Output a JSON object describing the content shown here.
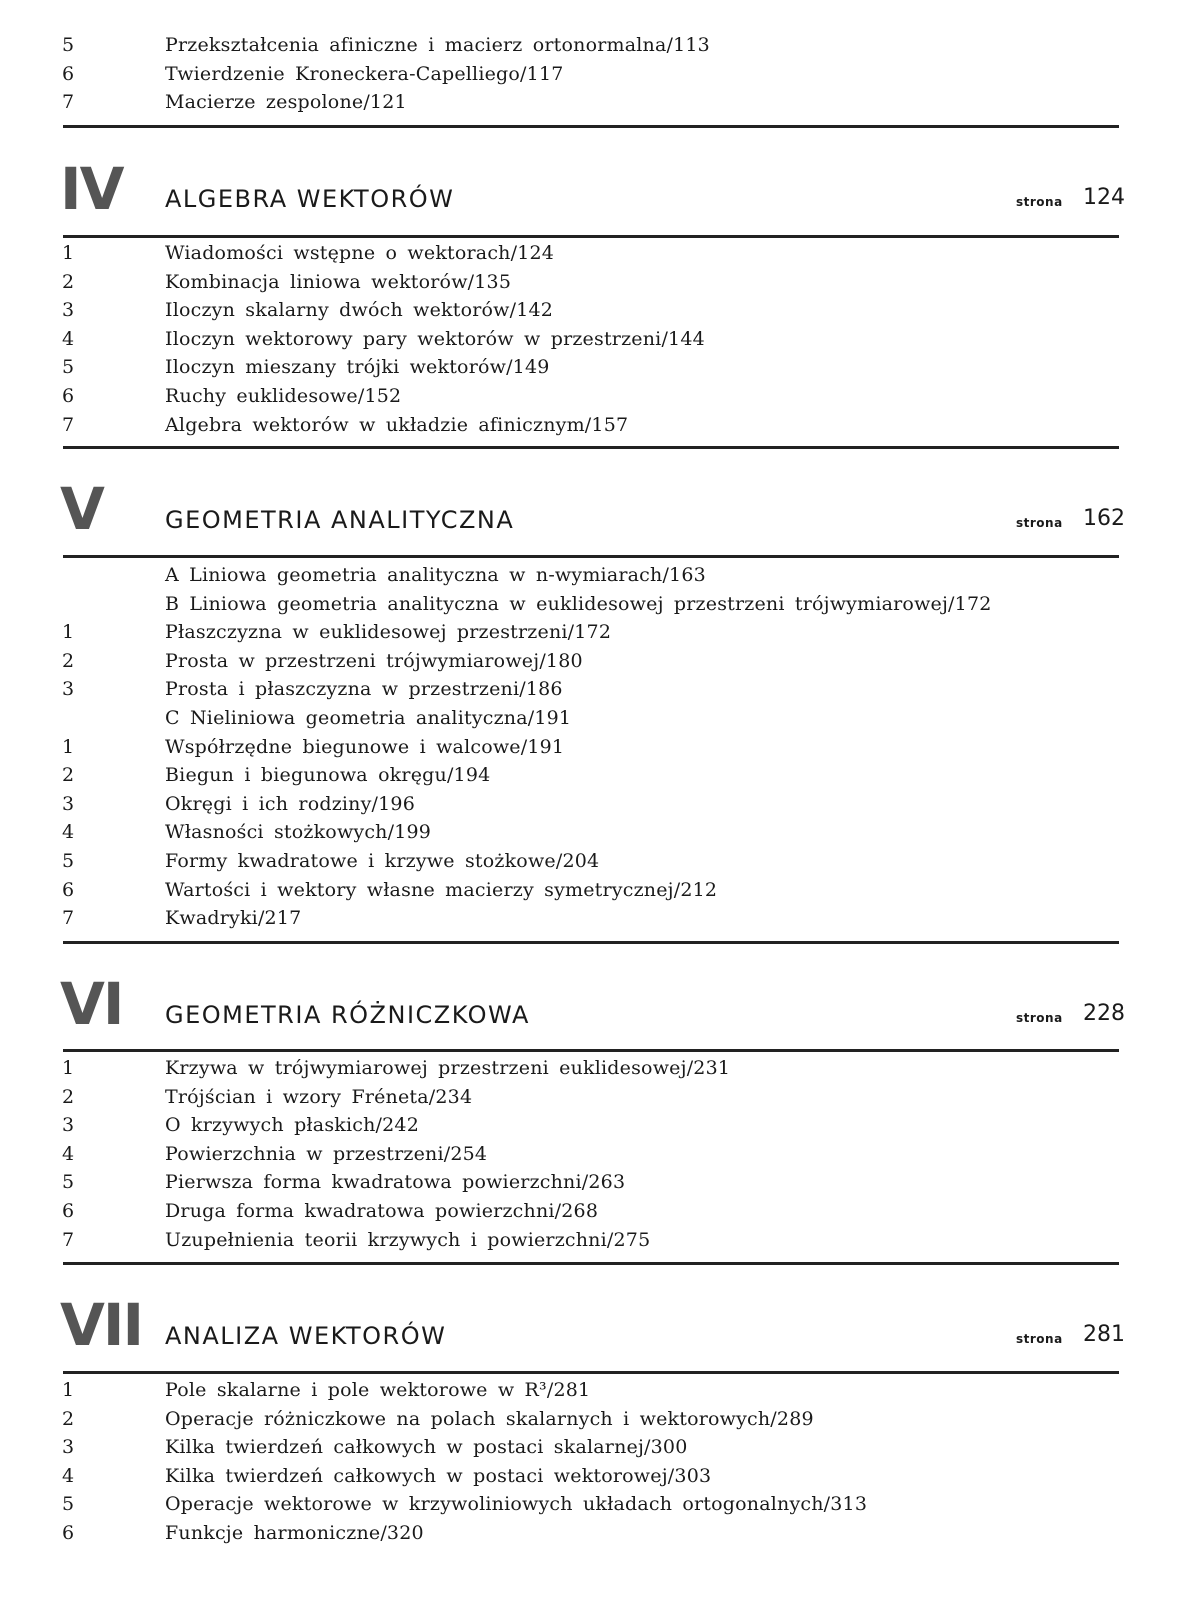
{
  "intro_items": [
    {
      "num": "5",
      "text": "Przekształcenia afiniczne i macierz ortonormalna/113"
    },
    {
      "num": "6",
      "text": "Twierdzenie Kroneckera-Capelliego/117"
    },
    {
      "num": "7",
      "text": "Macierze zespolone/121"
    }
  ],
  "page_label": "strona",
  "chapters": [
    {
      "numeral": "IV",
      "title": "ALGEBRA WEKTORÓW",
      "page": "124",
      "items": [
        {
          "num": "1",
          "text": "Wiadomości wstępne o wektorach/124"
        },
        {
          "num": "2",
          "text": "Kombinacja liniowa wektorów/135"
        },
        {
          "num": "3",
          "text": "Iloczyn skalarny dwóch wektorów/142"
        },
        {
          "num": "4",
          "text": "Iloczyn wektorowy pary wektorów w przestrzeni/144"
        },
        {
          "num": "5",
          "text": "Iloczyn mieszany trójki wektorów/149"
        },
        {
          "num": "6",
          "text": "Ruchy euklidesowe/152"
        },
        {
          "num": "7",
          "text": "Algebra wektorów w układzie afinicznym/157"
        }
      ]
    },
    {
      "numeral": "V",
      "title": "GEOMETRIA ANALITYCZNA",
      "page": "162",
      "items": [
        {
          "num": "",
          "text": "A Liniowa geometria analityczna w n-wymiarach/163"
        },
        {
          "num": "",
          "text": "B Liniowa geometria analityczna w euklidesowej przestrzeni trójwymiarowej/172"
        },
        {
          "num": "1",
          "text": "Płaszczyzna w euklidesowej przestrzeni/172"
        },
        {
          "num": "2",
          "text": "Prosta w przestrzeni trójwymiarowej/180"
        },
        {
          "num": "3",
          "text": "Prosta i płaszczyzna w przestrzeni/186"
        },
        {
          "num": "",
          "text": "C Nieliniowa geometria analityczna/191"
        },
        {
          "num": "1",
          "text": "Współrzędne biegunowe i walcowe/191"
        },
        {
          "num": "2",
          "text": "Biegun i biegunowa okręgu/194"
        },
        {
          "num": "3",
          "text": "Okręgi i ich rodziny/196"
        },
        {
          "num": "4",
          "text": "Własności stożkowych/199"
        },
        {
          "num": "5",
          "text": "Formy kwadratowe i krzywe stożkowe/204"
        },
        {
          "num": "6",
          "text": "Wartości i wektory własne macierzy symetrycznej/212"
        },
        {
          "num": "7",
          "text": "Kwadryki/217"
        }
      ]
    },
    {
      "numeral": "VI",
      "title": "GEOMETRIA RÓŻNICZKOWA",
      "page": "228",
      "items": [
        {
          "num": "1",
          "text": "Krzywa w trójwymiarowej przestrzeni euklidesowej/231"
        },
        {
          "num": "2",
          "text": "Trójścian i wzory Fréneta/234"
        },
        {
          "num": "3",
          "text": "O krzywych płaskich/242"
        },
        {
          "num": "4",
          "text": "Powierzchnia w przestrzeni/254"
        },
        {
          "num": "5",
          "text": "Pierwsza forma kwadratowa powierzchni/263"
        },
        {
          "num": "6",
          "text": "Druga forma kwadratowa powierzchni/268"
        },
        {
          "num": "7",
          "text": "Uzupełnienia teorii krzywych i powierzchni/275"
        }
      ]
    },
    {
      "numeral": "VII",
      "title": "ANALIZA WEKTORÓW",
      "page": "281",
      "items": [
        {
          "num": "1",
          "text": "Pole skalarne i pole wektorowe w R³/281"
        },
        {
          "num": "2",
          "text": "Operacje różniczkowe na polach skalarnych i wektorowych/289"
        },
        {
          "num": "3",
          "text": "Kilka twierdzeń całkowych w postaci skalarnej/300"
        },
        {
          "num": "4",
          "text": "Kilka twierdzeń całkowych w postaci wektorowej/303"
        },
        {
          "num": "5",
          "text": "Operacje wektorowe w krzywoliniowych układach ortogonalnych/313"
        },
        {
          "num": "6",
          "text": "Funkcje harmoniczne/320"
        }
      ]
    }
  ]
}
